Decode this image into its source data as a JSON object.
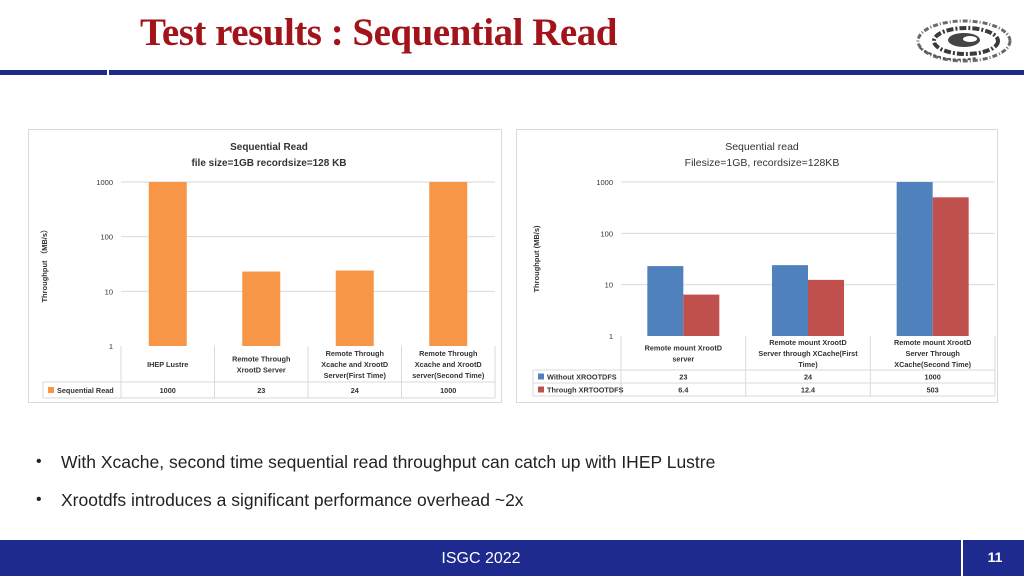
{
  "slide": {
    "title": "Test results : Sequential Read",
    "bullets": [
      "With Xcache, second time sequential read throughput can catch up with IHEP Lustre",
      "Xrootdfs introduces a significant performance overhead ~2x"
    ],
    "footer": "ISGC 2022",
    "page_number": "11",
    "colors": {
      "title": "#a3141a",
      "bar_band": "#1f2a8f"
    },
    "logo_icon": "ihep-swirl-logo-icon"
  },
  "chart_data": [
    {
      "type": "bar",
      "title": "Sequential Read",
      "subtitle": "file size=1GB recordsize=128 KB",
      "ylabel": "Throughput （MB/s）",
      "yscale": "log",
      "ylim": [
        1,
        1000
      ],
      "yticks": [
        "1000",
        "100",
        "10",
        "1"
      ],
      "categories": [
        [
          "IHEP Lustre"
        ],
        [
          "Remote Through",
          "XrootD Server"
        ],
        [
          "Remote Through",
          "Xcache and XrootD",
          "Server(First Time)"
        ],
        [
          "Remote Through",
          "Xcache and XrootD",
          "server(Second Time)"
        ]
      ],
      "series": [
        {
          "name": "Sequential Read",
          "color": "#f79646",
          "values": [
            1000,
            23,
            24,
            1000
          ],
          "labels": [
            "1000",
            "23",
            "24",
            "1000"
          ]
        }
      ],
      "legend": "data-table"
    },
    {
      "type": "bar",
      "title": "Sequential  read",
      "subtitle": "Filesize=1GB, recordsize=128KB",
      "ylabel": "Throughput (MB/s)",
      "yscale": "log",
      "ylim": [
        1,
        1000
      ],
      "yticks": [
        "1000",
        "100",
        "10",
        "1"
      ],
      "categories": [
        [
          "Remote mount XrootD",
          "server"
        ],
        [
          "Remote mount XrootD",
          "Server through XCache(First",
          "Time)"
        ],
        [
          "Remote mount XrootD",
          "Server Through",
          "XCache(Second Time)"
        ]
      ],
      "series": [
        {
          "name": "Without XROOTDFS",
          "color": "#4f81bd",
          "values": [
            23,
            24,
            1000
          ],
          "labels": [
            "23",
            "24",
            "1000"
          ]
        },
        {
          "name": "Through XRTOOTDFS",
          "color": "#c0504d",
          "values": [
            6.4,
            12.4,
            503
          ],
          "labels": [
            "6.4",
            "12.4",
            "503"
          ]
        }
      ],
      "legend": "data-table"
    }
  ]
}
